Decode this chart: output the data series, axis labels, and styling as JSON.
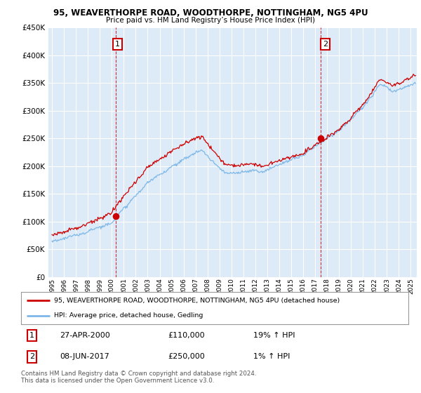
{
  "title1": "95, WEAVERTHORPE ROAD, WOODTHORPE, NOTTINGHAM, NG5 4PU",
  "title2": "Price paid vs. HM Land Registry’s House Price Index (HPI)",
  "ytick_values": [
    0,
    50000,
    100000,
    150000,
    200000,
    250000,
    300000,
    350000,
    400000,
    450000
  ],
  "ylim": [
    0,
    450000
  ],
  "xlim_start": 1994.7,
  "xlim_end": 2025.5,
  "background_color": "#ddeaf7",
  "grid_color": "#ffffff",
  "hpi_line_color": "#7db8e8",
  "price_line_color": "#cc0000",
  "purchase1_date": 2000.32,
  "purchase1_price": 110000,
  "purchase2_date": 2017.44,
  "purchase2_price": 250000,
  "legend_line1": "95, WEAVERTHORPE ROAD, WOODTHORPE, NOTTINGHAM, NG5 4PU (detached house)",
  "legend_line2": "HPI: Average price, detached house, Gedling",
  "note1_date": "27-APR-2000",
  "note1_price": "£110,000",
  "note1_hpi": "19% ↑ HPI",
  "note2_date": "08-JUN-2017",
  "note2_price": "£250,000",
  "note2_hpi": "1% ↑ HPI",
  "footer": "Contains HM Land Registry data © Crown copyright and database right 2024.\nThis data is licensed under the Open Government Licence v3.0."
}
